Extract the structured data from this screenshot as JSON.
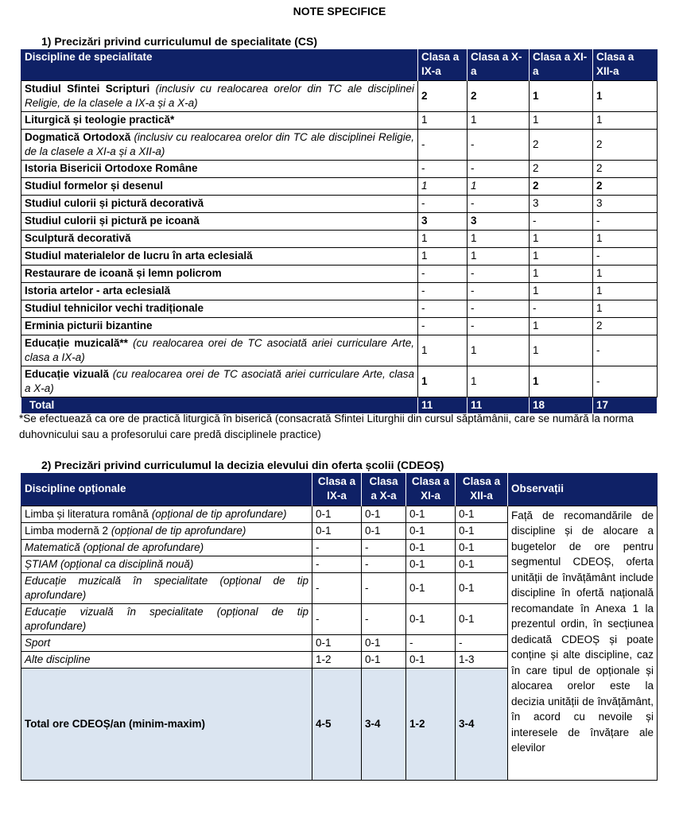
{
  "title": "NOTE SPECIFICE",
  "section1": {
    "heading": "1)  Precizări privind curriculumul de specialitate (CS)",
    "headers": [
      "Discipline de specialitate",
      "Clasa a IX-a",
      "Clasa a X-a",
      "Clasa a XI-a",
      "Clasa a XII-a"
    ],
    "rows": [
      {
        "name": "Studiul Sfintei Scripturi",
        "note": " (inclusiv cu realocarea orelor din TC ale disciplinei Religie, de la clasele a IX-a și a X-a)",
        "values": [
          "2",
          "2",
          "1",
          "1"
        ],
        "emphasis": [
          "b",
          "b",
          "b",
          "b"
        ]
      },
      {
        "name": "Liturgică și teologie practică*",
        "note": "",
        "values": [
          "1",
          "1",
          "1",
          "1"
        ],
        "emphasis": [
          "",
          "",
          "",
          ""
        ]
      },
      {
        "name": "Dogmatică Ortodoxă",
        "note": " (inclusiv cu realocarea orelor din TC ale disciplinei Religie, de la clasele a XI-a și a XII-a)",
        "values": [
          "-",
          "-",
          "2",
          "2"
        ],
        "emphasis": [
          "",
          "",
          "",
          ""
        ]
      },
      {
        "name": "Istoria Bisericii Ortodoxe Române",
        "note": "",
        "values": [
          "-",
          "-",
          "2",
          "2"
        ],
        "emphasis": [
          "",
          "",
          "",
          ""
        ]
      },
      {
        "name": "Studiul formelor și desenul",
        "note": "",
        "values": [
          "1",
          "1",
          "2",
          "2"
        ],
        "emphasis": [
          "i",
          "i",
          "b",
          "b"
        ]
      },
      {
        "name": "Studiul culorii și pictură decorativă",
        "note": "",
        "values": [
          "-",
          "-",
          "3",
          "3"
        ],
        "emphasis": [
          "",
          "",
          "",
          ""
        ]
      },
      {
        "name": "Studiul culorii și pictură pe icoană",
        "note": "",
        "values": [
          "3",
          "3",
          "-",
          "-"
        ],
        "emphasis": [
          "b",
          "b",
          "",
          ""
        ]
      },
      {
        "name": "Sculptură decorativă",
        "note": "",
        "values": [
          "1",
          "1",
          "1",
          "1"
        ],
        "emphasis": [
          "",
          "",
          "",
          ""
        ]
      },
      {
        "name": "Studiul materialelor de lucru în arta eclesială",
        "note": "",
        "values": [
          "1",
          "1",
          "1",
          "-"
        ],
        "emphasis": [
          "",
          "",
          "",
          ""
        ]
      },
      {
        "name": "Restaurare de icoană și lemn policrom",
        "note": "",
        "values": [
          "-",
          "-",
          "1",
          "1"
        ],
        "emphasis": [
          "",
          "",
          "",
          ""
        ]
      },
      {
        "name": "Istoria artelor - arta eclesială",
        "note": "",
        "values": [
          "-",
          "-",
          "1",
          "1"
        ],
        "emphasis": [
          "",
          "",
          "",
          ""
        ]
      },
      {
        "name": "Studiul tehnicilor vechi tradiționale",
        "note": "",
        "values": [
          "-",
          "-",
          "-",
          "1"
        ],
        "emphasis": [
          "",
          "",
          "",
          ""
        ]
      },
      {
        "name": "Erminia picturii bizantine",
        "note": "",
        "values": [
          "-",
          "-",
          "1",
          "2"
        ],
        "emphasis": [
          "",
          "",
          "",
          ""
        ]
      },
      {
        "name": "Educație muzicală**",
        "note": " (cu realocarea orei de TC asociată ariei curriculare Arte, clasa a IX-a)",
        "values": [
          "1",
          "1",
          "1",
          "-"
        ],
        "emphasis": [
          "",
          "",
          "",
          ""
        ]
      },
      {
        "name": "Educație vizuală",
        "note": " (cu realocarea orei de TC asociată ariei curriculare Arte, clasa a X-a)",
        "values": [
          "1",
          "1",
          "1",
          "-"
        ],
        "emphasis": [
          "b",
          "",
          "b",
          ""
        ]
      }
    ],
    "total": {
      "label": "Total",
      "values": [
        "11",
        "11",
        "18",
        "17"
      ]
    },
    "footnote": "*Se efectuează ca ore de practică liturgică în biserică (consacrată Sfintei Liturghii din cursul săptămânii, care se numără la norma duhovnicului sau a profesorului care predă disciplinele practice)"
  },
  "section2": {
    "heading": "2)  Precizări privind curriculumul la decizia elevului din oferta școlii (CDEOȘ)",
    "headers": [
      "Discipline opționale",
      "Clasa a IX-a",
      "Clasa a X-a",
      "Clasa a XI-a",
      "Clasa a XII-a",
      "Observații"
    ],
    "rows": [
      {
        "name": "Limba și literatura română",
        "note": " (opțional de tip aprofundare)",
        "italic_all": false,
        "values": [
          "0-1",
          "0-1",
          "0-1",
          "0-1"
        ]
      },
      {
        "name": "Limba modernă 2",
        "note": " (opțional de tip aprofundare)",
        "italic_all": false,
        "values": [
          "0-1",
          "0-1",
          "0-1",
          "0-1"
        ]
      },
      {
        "name": "Matematică",
        "note": " (opțional de aprofundare)",
        "italic_all": true,
        "values": [
          "-",
          "-",
          "0-1",
          "0-1"
        ]
      },
      {
        "name": "ȘTIAM",
        "note": " (opțional ca disciplină nouă)",
        "italic_all": true,
        "values": [
          "-",
          "-",
          "0-1",
          "0-1"
        ]
      },
      {
        "name": "Educație muzicală în specialitate",
        "note": " (opțional de tip aprofundare)",
        "italic_all": true,
        "values": [
          "-",
          "-",
          "0-1",
          "0-1"
        ]
      },
      {
        "name": "Educație vizuală în specialitate",
        "note": " (opțional de tip aprofundare)",
        "italic_all": true,
        "values": [
          "-",
          "-",
          "0-1",
          "0-1"
        ]
      },
      {
        "name": "Sport",
        "note": "",
        "italic_all": true,
        "values": [
          "0-1",
          "0-1",
          "-",
          "-"
        ]
      },
      {
        "name": "Alte discipline",
        "note": "",
        "italic_all": true,
        "values": [
          "1-2",
          "0-1",
          "0-1",
          "1-3"
        ]
      }
    ],
    "total": {
      "label": "Total ore CDEOȘ/an (minim-maxim)",
      "values": [
        "4-5",
        "3-4",
        "1-2",
        "3-4"
      ]
    },
    "observations": "Față de recomandările de discipline și de alocare a bugetelor de ore pentru segmentul CDEOȘ, oferta unității de învățământ include discipline în ofertă națională recomandate în Anexa 1 la prezentul ordin, în secțiunea dedicată CDEOȘ și poate conține și alte discipline, caz în care tipul de opționale și alocarea orelor este la decizia unității de învățământ, în acord cu nevoile și interesele de învățare ale elevilor"
  },
  "colors": {
    "header_bg": "#0f2166",
    "total2_bg": "#dbe5f1"
  }
}
